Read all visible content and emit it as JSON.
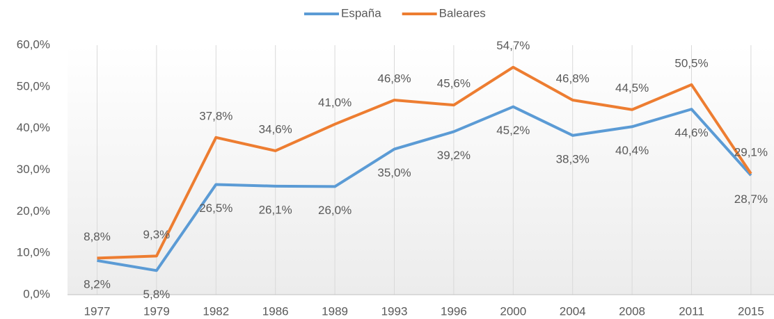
{
  "chart_data": {
    "type": "line",
    "categories": [
      "1977",
      "1979",
      "1982",
      "1986",
      "1989",
      "1993",
      "1996",
      "2000",
      "2004",
      "2008",
      "2011",
      "2015"
    ],
    "series": [
      {
        "name": "España",
        "color": "#5b9bd5",
        "values": [
          8.2,
          5.8,
          26.5,
          26.1,
          26.0,
          35.0,
          39.2,
          45.2,
          38.3,
          40.4,
          44.6,
          28.7
        ],
        "value_labels": [
          "8,2%",
          "5,8%",
          "26,5%",
          "26,1%",
          "26,0%",
          "35,0%",
          "39,2%",
          "45,2%",
          "38,3%",
          "40,4%",
          "44,6%",
          "28,7%"
        ]
      },
      {
        "name": "Baleares",
        "color": "#ed7d31",
        "values": [
          8.8,
          9.3,
          37.8,
          34.6,
          41.0,
          46.8,
          45.6,
          54.7,
          46.8,
          44.5,
          50.5,
          29.1
        ],
        "value_labels": [
          "8,8%",
          "9,3%",
          "37,8%",
          "34,6%",
          "41,0%",
          "46,8%",
          "45,6%",
          "54,7%",
          "46,8%",
          "44,5%",
          "50,5%",
          "29,1%"
        ]
      }
    ],
    "ylim": [
      0,
      60
    ],
    "yticks": [
      {
        "value": 0,
        "label": "0,0%"
      },
      {
        "value": 10,
        "label": "10,0%"
      },
      {
        "value": 20,
        "label": "20,0%"
      },
      {
        "value": 30,
        "label": "30,0%"
      },
      {
        "value": 40,
        "label": "40,0%"
      },
      {
        "value": 50,
        "label": "50,0%"
      },
      {
        "value": 60,
        "label": "60,0%"
      }
    ],
    "legend": "top"
  }
}
